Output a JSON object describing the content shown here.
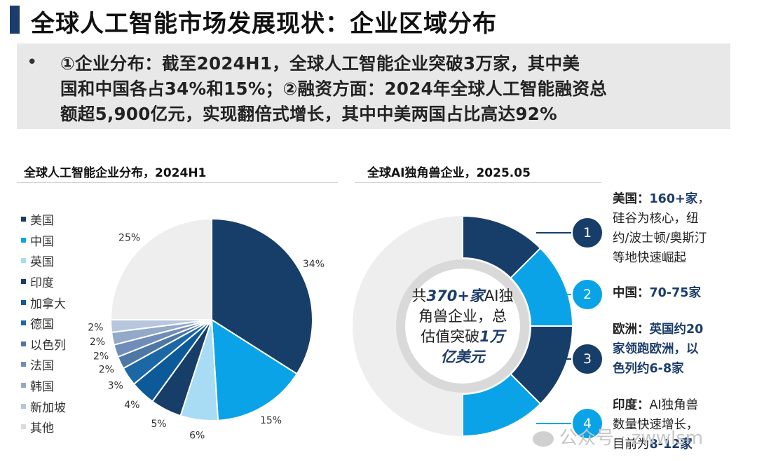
{
  "page": {
    "title": "全球人工智能市场发展现状：企业区域分布",
    "summary_lines": [
      "①企业分布：截至2024H1，全球人工智能企业突破3万家，其中美",
      "国和中国各占34%和15%；②融资方面：2024年全球人工智能融资总",
      "额超5,900亿元，实现翻倍式增长，其中中美两国占比高达92%"
    ],
    "bullet": "•"
  },
  "left_panel": {
    "title": "全球人工智能企业分布，2024H1"
  },
  "right_panel": {
    "title": "全球AI独角兽企业，2025.05",
    "center": {
      "p1": "共",
      "e1": "370+家",
      "p2": "AI独",
      "p3": "角兽企业，总",
      "p4": "估值突破",
      "e2": "1万",
      "e3": "亿美元"
    },
    "callouts": [
      {
        "num": "1",
        "head": "美国：",
        "hl": "160+家",
        "tail": "，",
        "lines": [
          "硅谷为核心，纽",
          "约/波士顿/奥斯汀",
          "等地快速崛起"
        ]
      },
      {
        "num": "2",
        "head": "中国：",
        "hl": "70-75家",
        "tail": "",
        "lines": []
      },
      {
        "num": "3",
        "head": "欧洲：",
        "hl": "英国约20",
        "tail": "",
        "lines_hl": [
          "家领跑欧洲，以",
          "色列约6-8家"
        ]
      },
      {
        "num": "4",
        "head": "印度：",
        "hl": "",
        "tail": "AI独角兽",
        "lines_mixed": [
          [
            "数量快速增长，",
            ""
          ],
          [
            "目前为",
            "8-12家"
          ]
        ]
      }
    ]
  },
  "watermark": "公众号 · zwwlsm",
  "chart_data": [
    {
      "type": "pie",
      "title": "全球人工智能企业分布，2024H1",
      "categories": [
        "美国",
        "中国",
        "英国",
        "印度",
        "加拿大",
        "德国",
        "以色列",
        "法国",
        "韩国",
        "新加坡",
        "其他"
      ],
      "values": [
        34,
        15,
        6,
        5,
        4,
        3,
        2,
        2,
        2,
        2,
        25
      ],
      "labels": [
        "34%",
        "15%",
        "6%",
        "5%",
        "4%",
        "3%",
        "2%",
        "2%",
        "2%",
        "2%",
        "25%"
      ],
      "colors": [
        "#173e69",
        "#0aa3e8",
        "#a7dcf4",
        "#173e69",
        "#0d5a99",
        "#1c68a6",
        "#4e77a6",
        "#6f8db8",
        "#92a9c9",
        "#b7c6dc",
        "#eeeeee"
      ],
      "legend_position": "left"
    },
    {
      "type": "donut",
      "title": "全球AI独角兽企业，2025.05",
      "segments": [
        {
          "label": "美国",
          "value": "160+家"
        },
        {
          "label": "中国",
          "value": "70-75家"
        },
        {
          "label": "欧洲",
          "value": "英国约20家"
        },
        {
          "label": "印度",
          "value": "8-12家"
        }
      ],
      "colors": [
        "#173e69",
        "#0aa3e8",
        "#173e69",
        "#0aa3e8"
      ],
      "total": "370+家"
    }
  ]
}
